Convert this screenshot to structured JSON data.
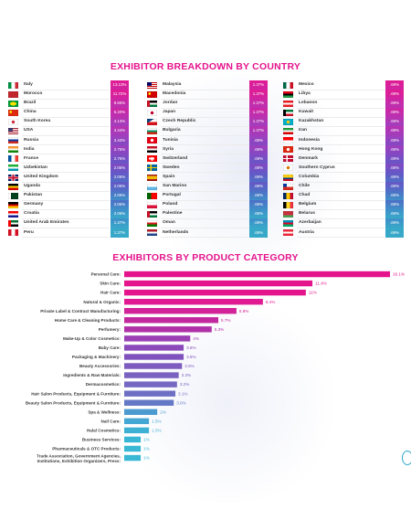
{
  "country_section": {
    "title": "EXHIBITOR BREAKDOWN BY COUNTRY",
    "columns": [
      [
        {
          "name": "Italy",
          "value": "13.13%",
          "flag": "italy-flag",
          "colors": [
            "#009246",
            "#ffffff",
            "#ce2b37"
          ],
          "layout": "v3"
        },
        {
          "name": "Morocco",
          "value": "11.72%",
          "flag": "morocco-flag",
          "colors": [
            "#c1272d"
          ],
          "layout": "solid"
        },
        {
          "name": "Brazil",
          "value": "9.65%",
          "flag": "brazil-flag",
          "colors": [
            "#009c3b",
            "#ffdf00"
          ],
          "layout": "diamond"
        },
        {
          "name": "China",
          "value": "6.20%",
          "flag": "china-flag",
          "colors": [
            "#de2910",
            "#ffde00"
          ],
          "layout": "star"
        },
        {
          "name": "South Korea",
          "value": "4.13%",
          "flag": "south-korea-flag",
          "colors": [
            "#ffffff",
            "#cd2e3a"
          ],
          "layout": "circle"
        },
        {
          "name": "USA",
          "value": "3.44%",
          "flag": "usa-flag",
          "colors": [
            "#b22234",
            "#ffffff",
            "#3c3b6e"
          ],
          "layout": "stripes"
        },
        {
          "name": "Russia",
          "value": "3.44%",
          "flag": "russia-flag",
          "colors": [
            "#ffffff",
            "#0039a6",
            "#d52b1e"
          ],
          "layout": "h3"
        },
        {
          "name": "India",
          "value": "2.75%",
          "flag": "india-flag",
          "colors": [
            "#ff9933",
            "#ffffff",
            "#138808"
          ],
          "layout": "h3"
        },
        {
          "name": "France",
          "value": "2.75%",
          "flag": "france-flag",
          "colors": [
            "#0055a4",
            "#ffffff",
            "#ef4135"
          ],
          "layout": "v3"
        },
        {
          "name": "Uzbekistan",
          "value": "2.06%",
          "flag": "uzbekistan-flag",
          "colors": [
            "#1eb53a",
            "#ffffff",
            "#0099b5"
          ],
          "layout": "h3"
        },
        {
          "name": "United Kingdom",
          "value": "2.06%",
          "flag": "uk-flag",
          "colors": [
            "#012169",
            "#ffffff",
            "#c8102e"
          ],
          "layout": "cross"
        },
        {
          "name": "Uganda",
          "value": "2.06%",
          "flag": "uganda-flag",
          "colors": [
            "#000000",
            "#fcdc04",
            "#d90000"
          ],
          "layout": "h3"
        },
        {
          "name": "Pakistan",
          "value": "2.06%",
          "flag": "pakistan-flag",
          "colors": [
            "#01411c",
            "#ffffff"
          ],
          "layout": "pak"
        },
        {
          "name": "Germany",
          "value": "2.06%",
          "flag": "germany-flag",
          "colors": [
            "#000000",
            "#dd0000",
            "#ffce00"
          ],
          "layout": "h3"
        },
        {
          "name": "Croatia",
          "value": "2.06%",
          "flag": "croatia-flag",
          "colors": [
            "#ff0000",
            "#ffffff",
            "#171796"
          ],
          "layout": "h3"
        },
        {
          "name": "United Arab Emirates",
          "value": "1.37%",
          "flag": "uae-flag",
          "colors": [
            "#00732f",
            "#ffffff",
            "#000000",
            "#ff0000"
          ],
          "layout": "uae"
        },
        {
          "name": "Peru",
          "value": "1.37%",
          "flag": "peru-flag",
          "colors": [
            "#d91023",
            "#ffffff",
            "#d91023"
          ],
          "layout": "v3"
        }
      ],
      [
        {
          "name": "Malaysia",
          "value": "1.37%",
          "flag": "malaysia-flag",
          "colors": [
            "#cc0001",
            "#ffffff",
            "#010066"
          ],
          "layout": "stripes"
        },
        {
          "name": "Macedonia",
          "value": "1.37%",
          "flag": "macedonia-flag",
          "colors": [
            "#d20000",
            "#ffe600"
          ],
          "layout": "star"
        },
        {
          "name": "Jordan",
          "value": "1.37%",
          "flag": "jordan-flag",
          "colors": [
            "#000000",
            "#ffffff",
            "#007a3d",
            "#ce1126"
          ],
          "layout": "uae"
        },
        {
          "name": "Japan",
          "value": "1.37%",
          "flag": "japan-flag",
          "colors": [
            "#ffffff",
            "#bc002d"
          ],
          "layout": "circle"
        },
        {
          "name": "Czech Republic",
          "value": "1.37%",
          "flag": "czech-flag",
          "colors": [
            "#ffffff",
            "#d7141a",
            "#11457e"
          ],
          "layout": "czech"
        },
        {
          "name": "Bulgaria",
          "value": "1.37%",
          "flag": "bulgaria-flag",
          "colors": [
            "#ffffff",
            "#00966e",
            "#d62612"
          ],
          "layout": "h3"
        },
        {
          "name": "Tunisia",
          "value": ".69%",
          "flag": "tunisia-flag",
          "colors": [
            "#e70013",
            "#ffffff"
          ],
          "layout": "circle-red"
        },
        {
          "name": "Syria",
          "value": ".69%",
          "flag": "syria-flag",
          "colors": [
            "#ce1126",
            "#ffffff",
            "#000000"
          ],
          "layout": "h3"
        },
        {
          "name": "Switzerland",
          "value": ".69%",
          "flag": "switzerland-flag",
          "colors": [
            "#ff0000",
            "#ffffff"
          ],
          "layout": "swiss"
        },
        {
          "name": "Sweden",
          "value": ".69%",
          "flag": "sweden-flag",
          "colors": [
            "#006aa7",
            "#fecc00"
          ],
          "layout": "nordic"
        },
        {
          "name": "Spain",
          "value": ".69%",
          "flag": "spain-flag",
          "colors": [
            "#aa151b",
            "#f1bf00",
            "#aa151b"
          ],
          "layout": "spain"
        },
        {
          "name": "San Marino",
          "value": ".69%",
          "flag": "san-marino-flag",
          "colors": [
            "#ffffff",
            "#5eb6e4"
          ],
          "layout": "h2"
        },
        {
          "name": "Portugal",
          "value": ".69%",
          "flag": "portugal-flag",
          "colors": [
            "#006600",
            "#ff0000"
          ],
          "layout": "portugal"
        },
        {
          "name": "Poland",
          "value": ".69%",
          "flag": "poland-flag",
          "colors": [
            "#ffffff",
            "#dc143c"
          ],
          "layout": "h2"
        },
        {
          "name": "Palestine",
          "value": ".69%",
          "flag": "palestine-flag",
          "colors": [
            "#000000",
            "#ffffff",
            "#007a3d",
            "#ce1126"
          ],
          "layout": "uae"
        },
        {
          "name": "Oman",
          "value": ".69%",
          "flag": "oman-flag",
          "colors": [
            "#ffffff",
            "#db161b",
            "#008000"
          ],
          "layout": "h3"
        },
        {
          "name": "Netherlands",
          "value": ".69%",
          "flag": "netherlands-flag",
          "colors": [
            "#ae1c28",
            "#ffffff",
            "#21468b"
          ],
          "layout": "h3"
        }
      ],
      [
        {
          "name": "Mexico",
          "value": ".69%",
          "flag": "mexico-flag",
          "colors": [
            "#006847",
            "#ffffff",
            "#ce1126"
          ],
          "layout": "v3"
        },
        {
          "name": "Libya",
          "value": ".69%",
          "flag": "libya-flag",
          "colors": [
            "#e70013",
            "#000000",
            "#239e46"
          ],
          "layout": "h3"
        },
        {
          "name": "Lebanon",
          "value": ".69%",
          "flag": "lebanon-flag",
          "colors": [
            "#ed1c24",
            "#ffffff",
            "#ed1c24"
          ],
          "layout": "h3"
        },
        {
          "name": "Kuwait",
          "value": ".69%",
          "flag": "kuwait-flag",
          "colors": [
            "#007a3d",
            "#ffffff",
            "#ce1126",
            "#000000"
          ],
          "layout": "uae"
        },
        {
          "name": "Kazakhstan",
          "value": ".69%",
          "flag": "kazakhstan-flag",
          "colors": [
            "#00afca",
            "#fec50c"
          ],
          "layout": "circle"
        },
        {
          "name": "Iran",
          "value": ".69%",
          "flag": "iran-flag",
          "colors": [
            "#239f40",
            "#ffffff",
            "#da0000"
          ],
          "layout": "h3"
        },
        {
          "name": "Indonesia",
          "value": ".69%",
          "flag": "indonesia-flag",
          "colors": [
            "#ff0000",
            "#ffffff"
          ],
          "layout": "h2"
        },
        {
          "name": "Hong Kong",
          "value": ".69%",
          "flag": "hong-kong-flag",
          "colors": [
            "#de2910",
            "#ffffff"
          ],
          "layout": "circle-red"
        },
        {
          "name": "Denmark",
          "value": ".69%",
          "flag": "denmark-flag",
          "colors": [
            "#c60c30",
            "#ffffff"
          ],
          "layout": "nordic"
        },
        {
          "name": "Southern Cyprus",
          "value": ".69%",
          "flag": "cyprus-flag",
          "colors": [
            "#ffffff",
            "#d57800"
          ],
          "layout": "circle"
        },
        {
          "name": "Columbia",
          "value": ".69%",
          "flag": "colombia-flag",
          "colors": [
            "#fcd116",
            "#003893",
            "#ce1126"
          ],
          "layout": "col"
        },
        {
          "name": "Chile",
          "value": ".69%",
          "flag": "chile-flag",
          "colors": [
            "#ffffff",
            "#d52b1e",
            "#0039a6"
          ],
          "layout": "chile"
        },
        {
          "name": "Chad",
          "value": ".69%",
          "flag": "chad-flag",
          "colors": [
            "#002664",
            "#fecb00",
            "#c60c30"
          ],
          "layout": "v3"
        },
        {
          "name": "Belgium",
          "value": ".69%",
          "flag": "belgium-flag",
          "colors": [
            "#000000",
            "#fdda24",
            "#ef3340"
          ],
          "layout": "v3"
        },
        {
          "name": "Belarus",
          "value": ".69%",
          "flag": "belarus-flag",
          "colors": [
            "#c8313e",
            "#4aa657"
          ],
          "layout": "belarus"
        },
        {
          "name": "Azerbaijan",
          "value": ".69%",
          "flag": "azerbaijan-flag",
          "colors": [
            "#0092bc",
            "#e4002b",
            "#00af66"
          ],
          "layout": "h3"
        },
        {
          "name": "Austria",
          "value": ".69%",
          "flag": "austria-flag",
          "colors": [
            "#ed2939",
            "#ffffff",
            "#ed2939"
          ],
          "layout": "h3"
        }
      ]
    ],
    "value_colors": [
      "#e21a92",
      "#cf25a3",
      "#b931b0",
      "#9f3ebd",
      "#8249c2",
      "#6657c6",
      "#4f6fc6",
      "#3f8fc9",
      "#38a8c9"
    ]
  },
  "chart_data": {
    "type": "bar",
    "orientation": "horizontal",
    "title": "EXHIBITORS BY PRODUCT CATEGORY",
    "categories": [
      "Personal Care:",
      "Skin Care:",
      "Hair Care:",
      "Natural & Organic:",
      "Private Label & Contract Manufacturing:",
      "Home Care & Cleaning Products:",
      "Perfumery:",
      "Make-Up & Color Cosmetics:",
      "Baby Care:",
      "Packaging & Machinery:",
      "Beauty Accessories:",
      "Ingredients & Raw Materials:",
      "Dermacosmetics:",
      "Hair Salon Products, Equipment & Furniture:",
      "Beauty Salon Products, Equipment & Furniture:",
      "Spa & Wellness:",
      "Nail Care:",
      "Halal Cosmetics:",
      "Business Services:",
      "Pharmaceuticals & OTC Products:",
      "Trade Association, Government Agencies,|Institutions, Exhibition Organizers, Press:"
    ],
    "values": [
      16.1,
      11.4,
      11,
      8.4,
      6.8,
      5.7,
      5.3,
      4,
      3.6,
      3.6,
      3.5,
      3.3,
      3.2,
      3.1,
      3.0,
      2,
      1.5,
      1.5,
      1,
      1,
      1
    ],
    "labels": [
      "16.1%",
      "11.4%",
      "11%",
      "8.4%",
      "6.8%",
      "5.7%",
      "5.3%",
      "4%",
      "3.6%",
      "3.6%",
      "3.5%",
      "3.3%",
      "3.2%",
      "3.1%",
      "3.0%",
      "2%",
      "1.5%",
      "1.5%",
      "1%",
      "1%",
      "1%"
    ],
    "xlim": [
      0,
      16.1
    ],
    "grid": false,
    "colors": [
      "#e4148c",
      "#e4148c",
      "#e4148c",
      "#e01a92",
      "#d22399",
      "#c2299f",
      "#b030a8",
      "#9b3fb4",
      "#8b49ba",
      "#8052bd",
      "#7d5bbf",
      "#7a62c1",
      "#7568c3",
      "#6d6fc4",
      "#6478c6",
      "#4c9bd0",
      "#44a6d2",
      "#3eb0d3",
      "#39b6d4",
      "#38b8d4",
      "#38b8d4"
    ]
  }
}
